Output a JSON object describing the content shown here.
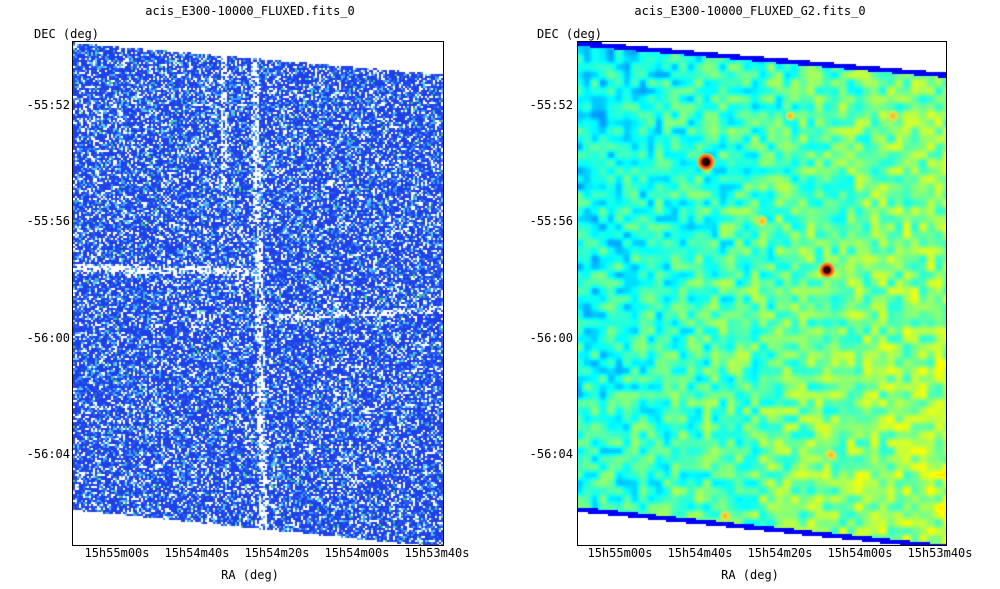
{
  "chart_data": [
    {
      "type": "heatmap",
      "title": "acis_E300-10000_FLUXED.fits_0",
      "xlabel": "RA (deg)",
      "ylabel": "DEC (deg)",
      "xticks": [
        "15h55m00s",
        "15h54m40s",
        "15h54m20s",
        "15h54m00s",
        "15h53m40s"
      ],
      "yticks": [
        "-55:52",
        "-55:56",
        "-56:00",
        "-56:04"
      ],
      "colormap": "blue-white noise, sparse cyan/green pixels",
      "grid": false
    },
    {
      "type": "heatmap",
      "title": "acis_E300-10000_FLUXED_G2.fits_0",
      "xlabel": "RA (deg)",
      "ylabel": "DEC (deg)",
      "xticks": [
        "15h55m00s",
        "15h54m40s",
        "15h54m20s",
        "15h54m00s",
        "15h53m40s"
      ],
      "yticks": [
        "-55:52",
        "-55:56",
        "-56:00",
        "-56:04"
      ],
      "colormap": "jet (cyan-green-yellow background, red/black point sources)",
      "grid": false
    }
  ],
  "colors": {
    "noise_blue": "#1f3fe8",
    "noise_white": "#ffffff",
    "smooth_cyan": "#3fd8f0",
    "smooth_green": "#5fe84a",
    "smooth_yellow": "#dcee3a",
    "source_red": "#e02010",
    "edge_blue": "#3a4fe0"
  }
}
